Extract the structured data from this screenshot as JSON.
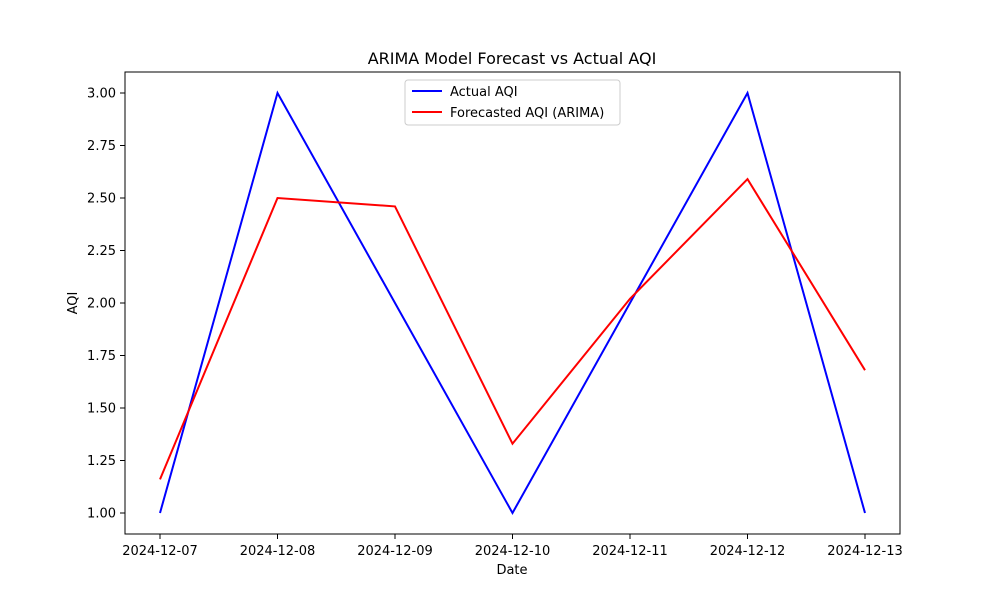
{
  "chart_data": {
    "type": "line",
    "title": "ARIMA Model Forecast vs Actual AQI",
    "xlabel": "Date",
    "ylabel": "AQI",
    "x": [
      "2024-12-07",
      "2024-12-08",
      "2024-12-09",
      "2024-12-10",
      "2024-12-11",
      "2024-12-12",
      "2024-12-13"
    ],
    "ylim": [
      0.9,
      3.1
    ],
    "yticks": [
      "1.00",
      "1.25",
      "1.50",
      "1.75",
      "2.00",
      "2.25",
      "2.50",
      "2.75",
      "3.00"
    ],
    "grid": false,
    "legend_position": "upper-center",
    "series": [
      {
        "name": "Actual AQI",
        "color": "#0000ff",
        "values": [
          1.0,
          3.0,
          2.0,
          1.0,
          2.0,
          3.0,
          1.0
        ]
      },
      {
        "name": "Forecasted AQI (ARIMA)",
        "color": "#ff0000",
        "values": [
          1.16,
          2.5,
          2.46,
          1.33,
          2.02,
          2.59,
          1.68
        ]
      }
    ]
  }
}
